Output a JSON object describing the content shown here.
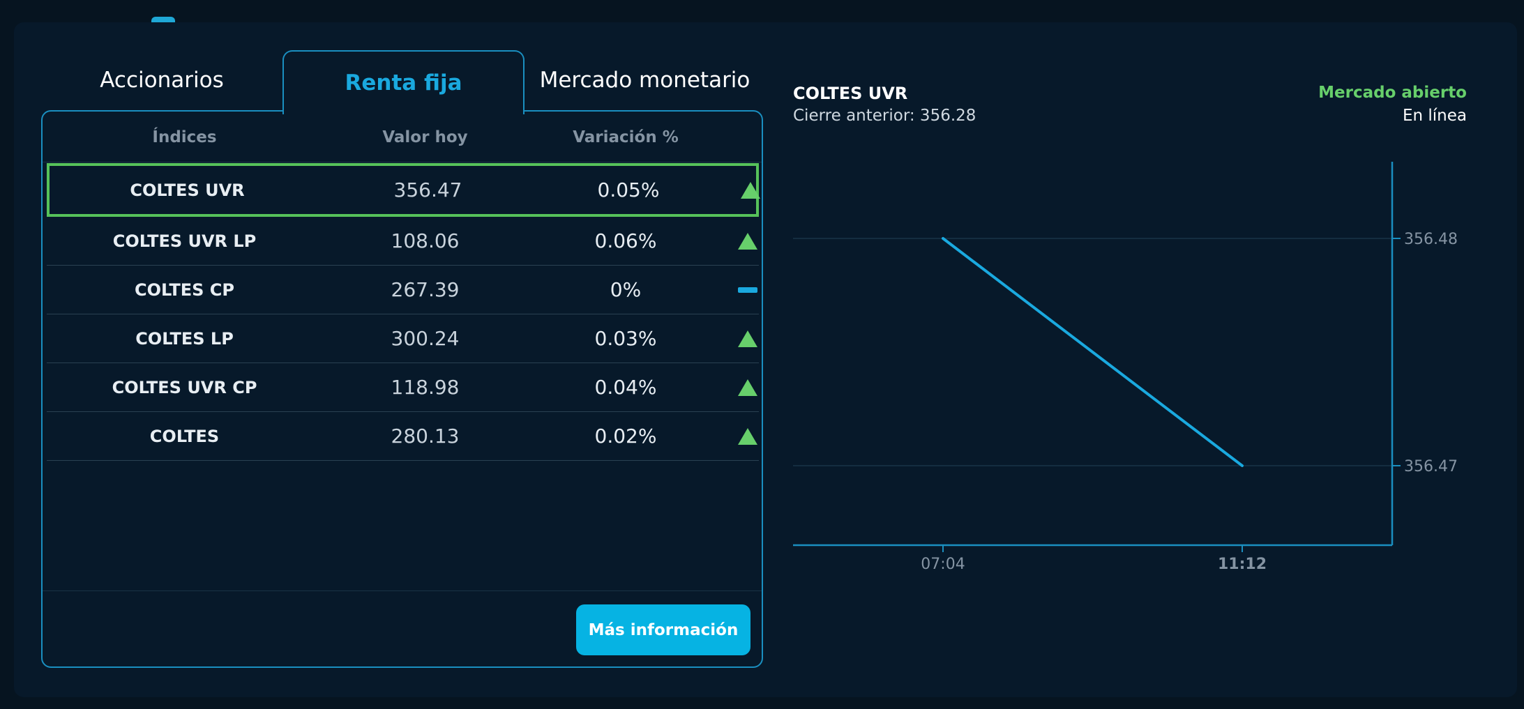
{
  "tabs": [
    {
      "label": "Accionarios",
      "active": false
    },
    {
      "label": "Renta fija",
      "active": true
    },
    {
      "label": "Mercado monetario",
      "active": false
    }
  ],
  "table": {
    "headers": [
      "Índices",
      "Valor hoy",
      "Variación %"
    ],
    "rows": [
      {
        "name": "COLTES UVR",
        "value": "356.47",
        "variation": "0.05%",
        "trend": "up",
        "selected": true
      },
      {
        "name": "COLTES UVR LP",
        "value": "108.06",
        "variation": "0.06%",
        "trend": "up"
      },
      {
        "name": "COLTES CP",
        "value": "267.39",
        "variation": "0%",
        "trend": "flat"
      },
      {
        "name": "COLTES LP",
        "value": "300.24",
        "variation": "0.03%",
        "trend": "up"
      },
      {
        "name": "COLTES UVR CP",
        "value": "118.98",
        "variation": "0.04%",
        "trend": "up"
      },
      {
        "name": "COLTES",
        "value": "280.13",
        "variation": "0.02%",
        "trend": "up"
      }
    ],
    "more_button": "Más información"
  },
  "chart_header": {
    "title": "COLTES UVR",
    "previous_close": "Cierre anterior: 356.28",
    "market_status": "Mercado abierto",
    "connection": "En línea"
  },
  "colors": {
    "accent": "#1aa9df",
    "up": "#67cf6b",
    "line": "#1aa9df",
    "axis": "#1a8fc0"
  },
  "icons": {
    "up": "triangle-up-icon",
    "flat": "dash-icon"
  },
  "chart_data": {
    "type": "line",
    "x": [
      "07:04",
      "11:12"
    ],
    "series": [
      {
        "values": [
          356.48,
          356.47
        ]
      }
    ],
    "ytick_labels": [
      "356.48",
      "356.47"
    ],
    "yticks": [
      356.48,
      356.47
    ],
    "xlabel": "",
    "ylabel": "",
    "grid": true,
    "y_axis_side": "right"
  }
}
